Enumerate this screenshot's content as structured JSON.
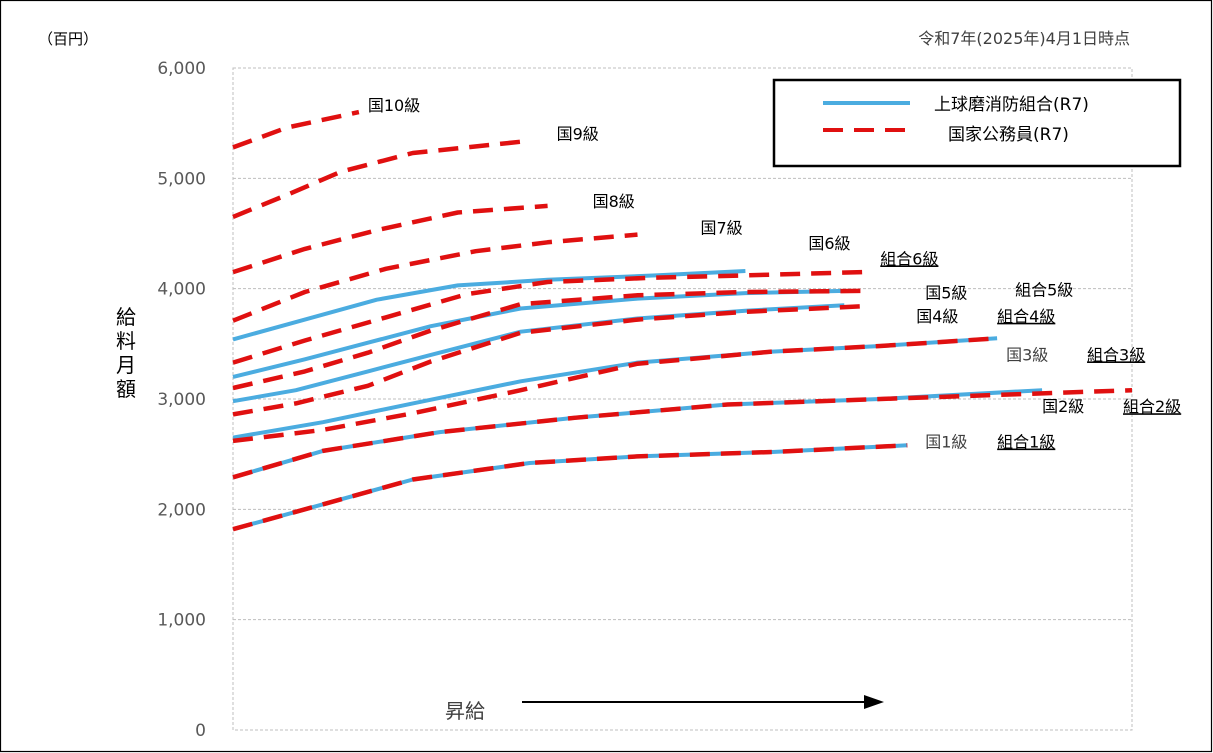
{
  "chart_data": {
    "type": "line",
    "unit_label": "（百円）",
    "date_note": "令和7年(2025年)4月1日時点",
    "ylabel": "給料月額",
    "ylim": [
      0,
      6000
    ],
    "yticks": [
      "0",
      "1,000",
      "2,000",
      "3,000",
      "4,000",
      "5,000",
      "6,000"
    ],
    "xlim": [
      0,
      100
    ],
    "grid": true,
    "arrow_label": "昇給",
    "legend": {
      "position": "top-right",
      "entries": [
        {
          "label": "上球磨消防組合(R7)",
          "style": "solid",
          "color": "#4BACE0"
        },
        {
          "label": "国家公務員(R7)",
          "style": "dashed",
          "color": "#E01010"
        }
      ]
    },
    "colors": {
      "kumiai": "#4BACE0",
      "kuni": "#E01010"
    },
    "series": [
      {
        "name": "組合1級",
        "group": "kumiai",
        "x": [
          0,
          8,
          20,
          33,
          45,
          60,
          75
        ],
        "y": [
          1820,
          2000,
          2270,
          2420,
          2480,
          2520,
          2580
        ]
      },
      {
        "name": "組合2級",
        "group": "kumiai",
        "x": [
          0,
          10,
          23,
          38,
          55,
          72,
          90
        ],
        "y": [
          2290,
          2530,
          2700,
          2830,
          2950,
          3000,
          3080
        ]
      },
      {
        "name": "組合3級",
        "group": "kumiai",
        "x": [
          0,
          10,
          20,
          32,
          45,
          60,
          72,
          85
        ],
        "y": [
          2650,
          2790,
          2960,
          3160,
          3330,
          3430,
          3480,
          3550
        ]
      },
      {
        "name": "組合4級",
        "group": "kumiai",
        "x": [
          0,
          7,
          15,
          22,
          32,
          45,
          57,
          68
        ],
        "y": [
          2980,
          3080,
          3250,
          3400,
          3610,
          3730,
          3800,
          3850
        ]
      },
      {
        "name": "組合5級",
        "group": "kumiai",
        "x": [
          0,
          8,
          15,
          22,
          32,
          45,
          57,
          68
        ],
        "y": [
          3200,
          3360,
          3510,
          3660,
          3820,
          3910,
          3960,
          3980
        ]
      },
      {
        "name": "組合6級",
        "group": "kumiai",
        "x": [
          0,
          8,
          16,
          25,
          35,
          47,
          57
        ],
        "y": [
          3540,
          3720,
          3900,
          4030,
          4080,
          4120,
          4160
        ]
      },
      {
        "name": "国1級",
        "group": "kuni",
        "x": [
          0,
          8,
          20,
          33,
          45,
          60,
          75
        ],
        "y": [
          1820,
          2000,
          2270,
          2420,
          2480,
          2520,
          2580
        ]
      },
      {
        "name": "国2級",
        "group": "kuni",
        "x": [
          0,
          10,
          23,
          38,
          55,
          72,
          100
        ],
        "y": [
          2290,
          2530,
          2700,
          2830,
          2950,
          3000,
          3080
        ]
      },
      {
        "name": "国3級",
        "group": "kuni",
        "x": [
          0,
          10,
          20,
          32,
          45,
          60,
          72,
          85
        ],
        "y": [
          2620,
          2720,
          2870,
          3080,
          3320,
          3430,
          3480,
          3550
        ]
      },
      {
        "name": "国4級",
        "group": "kuni",
        "x": [
          0,
          7,
          15,
          22,
          32,
          45,
          57,
          70
        ],
        "y": [
          2860,
          2960,
          3120,
          3340,
          3600,
          3720,
          3790,
          3840
        ]
      },
      {
        "name": "国5級",
        "group": "kuni",
        "x": [
          0,
          8,
          15,
          22,
          32,
          45,
          57,
          70
        ],
        "y": [
          3100,
          3250,
          3420,
          3620,
          3860,
          3940,
          3970,
          3980
        ]
      },
      {
        "name": "国6級",
        "group": "kuni",
        "x": [
          0,
          8,
          17,
          26,
          35,
          47,
          57,
          70
        ],
        "y": [
          3330,
          3530,
          3740,
          3950,
          4060,
          4100,
          4120,
          4150
        ]
      },
      {
        "name": "国7級",
        "group": "kuni",
        "x": [
          0,
          8,
          17,
          27,
          35,
          45
        ],
        "y": [
          3710,
          3970,
          4180,
          4340,
          4420,
          4490
        ]
      },
      {
        "name": "国8級",
        "group": "kuni",
        "x": [
          0,
          8,
          16,
          25,
          35
        ],
        "y": [
          4150,
          4360,
          4530,
          4690,
          4750
        ]
      },
      {
        "name": "国9級",
        "group": "kuni",
        "x": [
          0,
          6,
          12,
          20,
          33
        ],
        "y": [
          4650,
          4850,
          5060,
          5230,
          5340
        ]
      },
      {
        "name": "国10級",
        "group": "kuni",
        "x": [
          0,
          6,
          14
        ],
        "y": [
          5280,
          5460,
          5600
        ]
      }
    ],
    "annotations": [
      {
        "text": "国10級",
        "style": "kuni",
        "x": 15,
        "y": 5610,
        "anchor": "start"
      },
      {
        "text": "国9級",
        "style": "kuni",
        "x": 36,
        "y": 5350,
        "anchor": "start"
      },
      {
        "text": "国8級",
        "style": "kuni",
        "x": 40,
        "y": 4740,
        "anchor": "start"
      },
      {
        "text": "国7級",
        "style": "kuni",
        "x": 52,
        "y": 4500,
        "anchor": "start"
      },
      {
        "text": "国6級",
        "style": "kuni",
        "x": 64,
        "y": 4360,
        "anchor": "start"
      },
      {
        "text": "組合6級",
        "style": "kumiai-u",
        "x": 72,
        "y": 4220,
        "anchor": "start"
      },
      {
        "text": "国5級",
        "style": "kuni",
        "x": 77,
        "y": 3910,
        "anchor": "start"
      },
      {
        "text": "組合5級",
        "style": "kumiai",
        "x": 87,
        "y": 3940,
        "anchor": "start"
      },
      {
        "text": "国4級",
        "style": "kuni",
        "x": 76,
        "y": 3700,
        "anchor": "start"
      },
      {
        "text": "組合4級",
        "style": "kumiai-u",
        "x": 85,
        "y": 3700,
        "anchor": "start"
      },
      {
        "text": "国3級",
        "style": "kuni-gray",
        "x": 86,
        "y": 3350,
        "anchor": "start"
      },
      {
        "text": "組合3級",
        "style": "kumiai-u",
        "x": 95,
        "y": 3350,
        "anchor": "start"
      },
      {
        "text": "国2級",
        "style": "kuni",
        "x": 90,
        "y": 2880,
        "anchor": "start"
      },
      {
        "text": "組合2級",
        "style": "kumiai-u",
        "x": 99,
        "y": 2880,
        "anchor": "start"
      },
      {
        "text": "国1級",
        "style": "kuni-gray",
        "x": 77,
        "y": 2560,
        "anchor": "start"
      },
      {
        "text": "組合1級",
        "style": "kumiai-u",
        "x": 85,
        "y": 2560,
        "anchor": "start"
      }
    ]
  }
}
